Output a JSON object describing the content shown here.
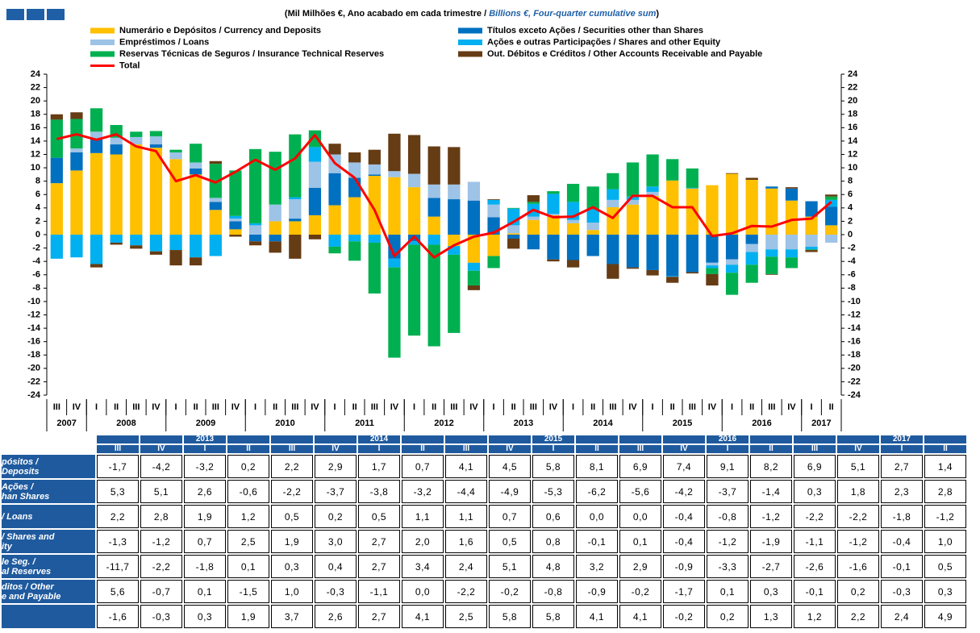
{
  "chart_data": {
    "type": "bar",
    "stacked": true,
    "title": [
      "(Mil Milhões €, Ano acabado em cada trimestre / ",
      "Billions  €, Four-quarter cumulative sum",
      ")"
    ],
    "categories": [
      "III",
      "IV",
      "I",
      "II",
      "III",
      "IV",
      "I",
      "II",
      "III",
      "IV",
      "I",
      "II",
      "III",
      "IV",
      "I",
      "II",
      "III",
      "IV",
      "I",
      "II",
      "III",
      "IV",
      "I",
      "II",
      "III",
      "IV",
      "I",
      "II",
      "III",
      "IV",
      "I",
      "II",
      "III",
      "IV",
      "I",
      "II",
      "III",
      "IV",
      "I",
      "II"
    ],
    "years": [
      "2007",
      null,
      "2008",
      null,
      null,
      null,
      "2009",
      null,
      null,
      null,
      "2010",
      null,
      null,
      null,
      "2011",
      null,
      null,
      null,
      "2012",
      null,
      null,
      null,
      "2013",
      null,
      null,
      null,
      "2014",
      null,
      null,
      null,
      "2015",
      null,
      null,
      null,
      "2016",
      null,
      null,
      null,
      "2017",
      null
    ],
    "ylim": [
      -24,
      24
    ],
    "yticks": [
      -24,
      -22,
      -20,
      -18,
      -16,
      -14,
      -12,
      -10,
      -8,
      -6,
      -4,
      -2,
      0,
      2,
      4,
      6,
      8,
      10,
      12,
      14,
      16,
      18,
      20,
      22,
      24
    ],
    "grid": false,
    "series": [
      {
        "name": "Numerário e Depósitos / Currency and Deposits",
        "color": "#ffc000",
        "type": "bar",
        "values": [
          7.7,
          9.6,
          12.2,
          12.0,
          13.5,
          13.0,
          11.3,
          9.0,
          3.7,
          0.8,
          0.0,
          2.0,
          2.0,
          2.9,
          4.4,
          5.6,
          8.8,
          8.6,
          7.1,
          2.7,
          -1.7,
          -4.2,
          -3.2,
          0.2,
          2.2,
          2.9,
          1.7,
          0.7,
          4.1,
          4.5,
          5.8,
          8.1,
          6.9,
          7.4,
          9.1,
          8.2,
          6.9,
          5.1,
          2.7,
          1.4
        ]
      },
      {
        "name": "Títulos exceto Ações / Securities other than Shares",
        "color": "#0070c0",
        "type": "bar",
        "values": [
          3.8,
          2.7,
          2.2,
          1.5,
          0.0,
          0.5,
          0.0,
          0.9,
          1.2,
          1.2,
          -1.0,
          -1.0,
          0.4,
          4.1,
          4.8,
          2.9,
          0.2,
          -3.6,
          -1.0,
          2.8,
          5.3,
          5.1,
          2.6,
          -0.6,
          -2.2,
          -3.7,
          -3.8,
          -3.2,
          -4.4,
          -4.9,
          -5.3,
          -6.2,
          -5.6,
          -4.2,
          -3.7,
          -1.4,
          0.3,
          1.8,
          2.3,
          2.8
        ]
      },
      {
        "name": "Empréstimos / Loans",
        "color": "#9dc3e6",
        "type": "bar",
        "values": [
          0.0,
          0.6,
          1.0,
          1.0,
          1.1,
          1.2,
          1.0,
          0.9,
          0.6,
          0.4,
          1.4,
          2.5,
          2.9,
          3.9,
          2.8,
          2.3,
          1.5,
          0.9,
          2.0,
          2.0,
          2.2,
          2.8,
          1.9,
          1.2,
          0.5,
          0.2,
          0.5,
          1.1,
          1.1,
          0.7,
          0.6,
          0.0,
          0.0,
          -0.4,
          -0.8,
          -1.2,
          -2.2,
          -2.2,
          -1.8,
          -1.2
        ]
      },
      {
        "name": "Ações e outras Participações / Shares and other Equity",
        "color": "#00b0f0",
        "type": "bar",
        "values": [
          -3.6,
          -3.4,
          -4.4,
          -1.2,
          -1.6,
          -2.5,
          -2.3,
          -3.4,
          -3.2,
          0.4,
          0.3,
          0.0,
          0.3,
          2.2,
          -1.8,
          -1.0,
          -1.2,
          -1.3,
          -0.5,
          -1.5,
          -1.3,
          -1.2,
          0.7,
          2.5,
          1.9,
          3.0,
          2.7,
          2.0,
          1.6,
          0.5,
          0.8,
          -0.1,
          0.1,
          -0.4,
          -1.2,
          -1.9,
          -1.1,
          -1.2,
          -0.4,
          1.0
        ]
      },
      {
        "name": "Reservas Técnicas de Seguros / Insurance Technical Reserves",
        "color": "#00b050",
        "type": "bar",
        "values": [
          5.7,
          4.4,
          3.5,
          1.9,
          0.8,
          0.8,
          0.4,
          2.8,
          5.1,
          6.8,
          11.1,
          7.9,
          9.4,
          2.5,
          -1.0,
          -2.9,
          -7.6,
          -13.5,
          -13.6,
          -15.2,
          -11.7,
          -2.2,
          -1.8,
          0.1,
          0.3,
          0.4,
          2.7,
          3.4,
          2.4,
          5.1,
          4.8,
          3.2,
          2.9,
          -0.9,
          -3.3,
          -2.7,
          -2.6,
          -1.6,
          -0.1,
          0.5
        ]
      },
      {
        "name": "Out. Débitos e Créditos / Other Accounts Receivable and Payable",
        "color": "#663c14",
        "type": "bar",
        "values": [
          0.8,
          1.0,
          -0.5,
          -0.3,
          -0.5,
          -0.5,
          -2.3,
          -1.2,
          0.4,
          -0.3,
          -0.6,
          -1.7,
          -3.6,
          -0.7,
          1.6,
          1.5,
          2.2,
          5.6,
          5.8,
          5.7,
          5.6,
          -0.7,
          0.1,
          -1.5,
          1.0,
          -0.3,
          -1.1,
          0.0,
          -2.2,
          -0.2,
          -0.8,
          -0.9,
          -0.2,
          -1.7,
          0.1,
          0.3,
          -0.1,
          0.2,
          -0.3,
          0.3
        ]
      },
      {
        "name": "Total",
        "color": "#ff0000",
        "type": "line",
        "values": [
          14.3,
          15.0,
          14.2,
          15.0,
          13.2,
          12.5,
          8.0,
          8.9,
          7.8,
          9.4,
          11.2,
          9.7,
          11.4,
          14.9,
          10.7,
          8.5,
          3.7,
          -3.2,
          -0.3,
          -3.4,
          -1.6,
          -0.3,
          0.3,
          1.9,
          3.7,
          2.6,
          2.7,
          4.1,
          2.5,
          5.8,
          5.8,
          4.1,
          4.1,
          -0.2,
          0.2,
          1.3,
          1.2,
          2.2,
          2.4,
          4.9
        ]
      }
    ]
  },
  "table": {
    "header_years": [
      null,
      null,
      "2013",
      null,
      null,
      null,
      "2014",
      null,
      null,
      null,
      "2015",
      null,
      null,
      null,
      "2016",
      null,
      null,
      null,
      "2017",
      null
    ],
    "header_quarters": [
      "III",
      "IV",
      "I",
      "II",
      "III",
      "IV",
      "I",
      "II",
      "III",
      "IV",
      "I",
      "II",
      "III",
      "IV",
      "I",
      "II",
      "III",
      "IV",
      "I",
      "II"
    ],
    "rows": [
      {
        "label": "pósitos /\nDeposits",
        "values": [
          "-1,7",
          "-4,2",
          "-3,2",
          "0,2",
          "2,2",
          "2,9",
          "1,7",
          "0,7",
          "4,1",
          "4,5",
          "5,8",
          "8,1",
          "6,9",
          "7,4",
          "9,1",
          "8,2",
          "6,9",
          "5,1",
          "2,7",
          "1,4"
        ]
      },
      {
        "label": "Ações /\nhan Shares",
        "values": [
          "5,3",
          "5,1",
          "2,6",
          "-0,6",
          "-2,2",
          "-3,7",
          "-3,8",
          "-3,2",
          "-4,4",
          "-4,9",
          "-5,3",
          "-6,2",
          "-5,6",
          "-4,2",
          "-3,7",
          "-1,4",
          "0,3",
          "1,8",
          "2,3",
          "2,8"
        ]
      },
      {
        "label": "/ Loans",
        "values": [
          "2,2",
          "2,8",
          "1,9",
          "1,2",
          "0,5",
          "0,2",
          "0,5",
          "1,1",
          "1,1",
          "0,7",
          "0,6",
          "0,0",
          "0,0",
          "-0,4",
          "-0,8",
          "-1,2",
          "-2,2",
          "-2,2",
          "-1,8",
          "-1,2"
        ]
      },
      {
        "label": "/ Shares and\nity",
        "values": [
          "-1,3",
          "-1,2",
          "0,7",
          "2,5",
          "1,9",
          "3,0",
          "2,7",
          "2,0",
          "1,6",
          "0,5",
          "0,8",
          "-0,1",
          "0,1",
          "-0,4",
          "-1,2",
          "-1,9",
          "-1,1",
          "-1,2",
          "-0,4",
          "1,0"
        ]
      },
      {
        "label": "le Seg. /\nal Reserves",
        "values": [
          "-11,7",
          "-2,2",
          "-1,8",
          "0,1",
          "0,3",
          "0,4",
          "2,7",
          "3,4",
          "2,4",
          "5,1",
          "4,8",
          "3,2",
          "2,9",
          "-0,9",
          "-3,3",
          "-2,7",
          "-2,6",
          "-1,6",
          "-0,1",
          "0,5"
        ]
      },
      {
        "label": "ditos / Other\ne and Payable",
        "values": [
          "5,6",
          "-0,7",
          "0,1",
          "-1,5",
          "1,0",
          "-0,3",
          "-1,1",
          "0,0",
          "-2,2",
          "-0,2",
          "-0,8",
          "-0,9",
          "-0,2",
          "-1,7",
          "0,1",
          "0,3",
          "-0,1",
          "0,2",
          "-0,3",
          "0,3"
        ]
      },
      {
        "values": [
          "-1,6",
          "-0,3",
          "0,3",
          "1,9",
          "3,7",
          "2,6",
          "2,7",
          "4,1",
          "2,5",
          "5,8",
          "5,8",
          "4,1",
          "4,1",
          "-0,2",
          "0,2",
          "1,3",
          "1,2",
          "2,2",
          "2,4",
          "4,9"
        ]
      }
    ]
  }
}
